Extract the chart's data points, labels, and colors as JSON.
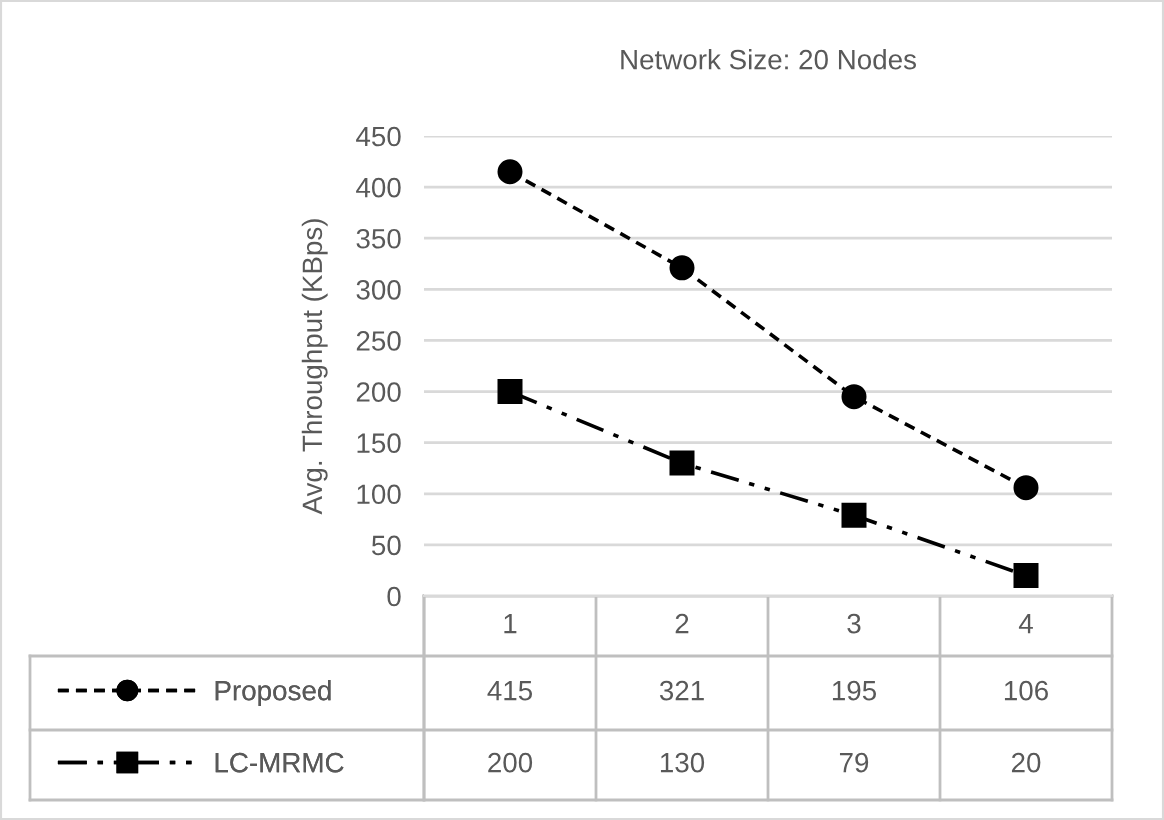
{
  "chart_data": {
    "type": "line",
    "title": "Network Size: 20 Nodes",
    "ylabel": "Avg. Throughput (KBps)",
    "categories": [
      "1",
      "2",
      "3",
      "4"
    ],
    "series": [
      {
        "name": "Proposed",
        "color": "#000000",
        "marker": "circle",
        "line_style": "dashed",
        "values": [
          415,
          321,
          195,
          106
        ]
      },
      {
        "name": "LC-MRMC",
        "color": "#000000",
        "marker": "square",
        "line_style": "dashdot",
        "values": [
          200,
          130,
          79,
          20
        ]
      }
    ],
    "ylim": [
      0,
      450
    ],
    "yticks": [
      0,
      50,
      100,
      150,
      200,
      250,
      300,
      350,
      400,
      450
    ],
    "grid": "y",
    "legend": "bottom",
    "data_labels": true
  }
}
